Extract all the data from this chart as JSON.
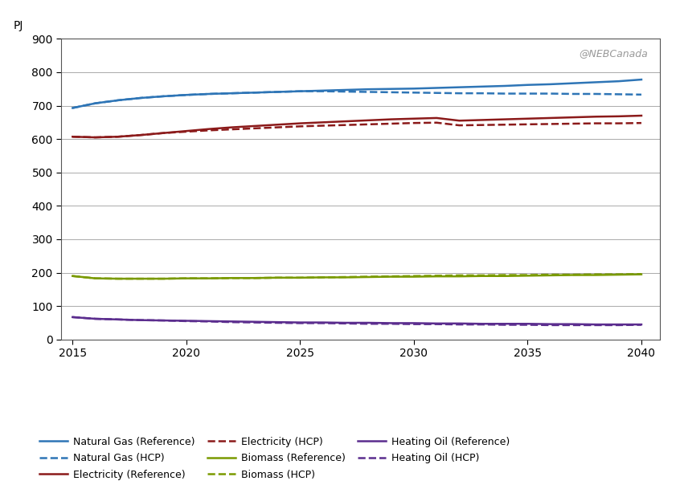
{
  "years": [
    2015,
    2016,
    2017,
    2018,
    2019,
    2020,
    2021,
    2022,
    2023,
    2024,
    2025,
    2026,
    2027,
    2028,
    2029,
    2030,
    2031,
    2032,
    2033,
    2034,
    2035,
    2036,
    2037,
    2038,
    2039,
    2040
  ],
  "nat_gas_ref": [
    693,
    707,
    716,
    723,
    728,
    732,
    735,
    737,
    739,
    741,
    743,
    745,
    747,
    749,
    750,
    751,
    753,
    755,
    757,
    759,
    762,
    764,
    767,
    770,
    773,
    778
  ],
  "nat_gas_hcp": [
    693,
    707,
    716,
    723,
    728,
    732,
    735,
    737,
    739,
    741,
    743,
    743,
    742,
    741,
    740,
    739,
    738,
    737,
    737,
    736,
    736,
    736,
    735,
    735,
    734,
    733
  ],
  "elec_ref": [
    607,
    605,
    607,
    612,
    618,
    624,
    630,
    635,
    639,
    643,
    647,
    650,
    653,
    656,
    659,
    661,
    663,
    655,
    657,
    659,
    661,
    663,
    665,
    667,
    668,
    670
  ],
  "elec_hcp": [
    607,
    605,
    607,
    612,
    618,
    622,
    626,
    629,
    632,
    635,
    638,
    640,
    642,
    644,
    646,
    648,
    649,
    641,
    642,
    643,
    644,
    645,
    646,
    647,
    647,
    648
  ],
  "biomass_ref": [
    190,
    183,
    182,
    182,
    182,
    183,
    183,
    184,
    184,
    185,
    185,
    186,
    186,
    187,
    188,
    188,
    189,
    189,
    190,
    190,
    191,
    192,
    193,
    193,
    194,
    195
  ],
  "biomass_hcp": [
    190,
    183,
    182,
    182,
    182,
    183,
    183,
    184,
    184,
    185,
    185,
    186,
    187,
    188,
    189,
    190,
    191,
    192,
    192,
    193,
    193,
    194,
    194,
    195,
    195,
    196
  ],
  "heat_oil_ref": [
    67,
    62,
    60,
    58,
    57,
    56,
    55,
    54,
    53,
    52,
    51,
    51,
    50,
    50,
    49,
    49,
    48,
    48,
    47,
    47,
    47,
    46,
    46,
    45,
    45,
    45
  ],
  "heat_oil_hcp": [
    67,
    62,
    60,
    58,
    57,
    55,
    54,
    52,
    51,
    50,
    49,
    49,
    48,
    47,
    47,
    46,
    46,
    45,
    45,
    44,
    44,
    43,
    43,
    43,
    43,
    44
  ],
  "color_blue": "#2E75B6",
  "color_red": "#8B1A1A",
  "color_green": "#7A9A01",
  "color_purple": "#5B2D8E",
  "ylabel": "PJ",
  "ylim": [
    0,
    900
  ],
  "yticks": [
    0,
    100,
    200,
    300,
    400,
    500,
    600,
    700,
    800,
    900
  ],
  "xlim": [
    2014.5,
    2040.8
  ],
  "xticks": [
    2015,
    2020,
    2025,
    2030,
    2035,
    2040
  ],
  "watermark": "@NEBCanada",
  "legend_entries": [
    "Natural Gas (Reference)",
    "Natural Gas (HCP)",
    "Electricity (Reference)",
    "Electricity (HCP)",
    "Biomass (Reference)",
    "Biomass (HCP)",
    "Heating Oil (Reference)",
    "Heating Oil (HCP)"
  ],
  "lw": 1.8
}
